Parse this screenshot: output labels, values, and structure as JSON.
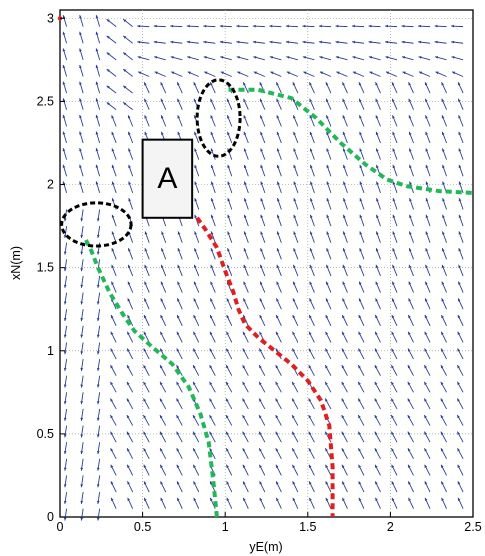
{
  "chart_data": {
    "type": "quiver",
    "xlabel": "yE(m)",
    "ylabel": "xN(m)",
    "xlim": [
      0,
      2.5
    ],
    "ylim": [
      0,
      3.05
    ],
    "xticks": [
      "0",
      "0.5",
      "1",
      "1.5",
      "2",
      "2.5"
    ],
    "yticks": [
      "0",
      "0.5",
      "1",
      "1.5",
      "2",
      "2.5",
      "3"
    ],
    "grid": true,
    "arrow_color": "#2b3f8f",
    "annotation": {
      "label": "A",
      "x_range": [
        0.5,
        0.8
      ],
      "y_range": [
        1.8,
        2.27
      ]
    },
    "start_marker": {
      "x": 0.0,
      "y": 3.0,
      "color": "#e02020"
    },
    "paths": [
      {
        "color": "#e02020",
        "dashed": true,
        "x": [
          0.83,
          0.88,
          0.95,
          1.0,
          1.05,
          1.08,
          1.12,
          1.2,
          1.3,
          1.4,
          1.5,
          1.58,
          1.63,
          1.65,
          1.65
        ],
        "y": [
          1.8,
          1.73,
          1.62,
          1.48,
          1.35,
          1.25,
          1.16,
          1.08,
          1.0,
          0.92,
          0.82,
          0.7,
          0.55,
          0.3,
          0.0
        ]
      },
      {
        "color": "#22b85a",
        "dashed": true,
        "x": [
          0.95,
          0.93,
          0.9,
          0.85,
          0.78,
          0.68,
          0.55,
          0.45,
          0.38,
          0.3,
          0.23,
          0.19,
          0.15
        ],
        "y": [
          0.0,
          0.2,
          0.45,
          0.62,
          0.78,
          0.92,
          1.03,
          1.12,
          1.22,
          1.35,
          1.5,
          1.6,
          1.68
        ]
      },
      {
        "color": "#22b85a",
        "dashed": true,
        "x": [
          1.02,
          1.2,
          1.4,
          1.55,
          1.7,
          1.85,
          1.98,
          2.1,
          2.3,
          2.5
        ],
        "y": [
          2.57,
          2.57,
          2.52,
          2.4,
          2.25,
          2.12,
          2.03,
          1.99,
          1.96,
          1.95
        ]
      }
    ],
    "ellipses": [
      {
        "cx": 0.22,
        "cy": 1.76,
        "rx": 0.21,
        "ry": 0.13,
        "color": "#000000",
        "dashed": true
      },
      {
        "cx": 0.96,
        "cy": 2.4,
        "rx": 0.13,
        "ry": 0.23,
        "color": "#000000",
        "dashed": true
      }
    ]
  }
}
